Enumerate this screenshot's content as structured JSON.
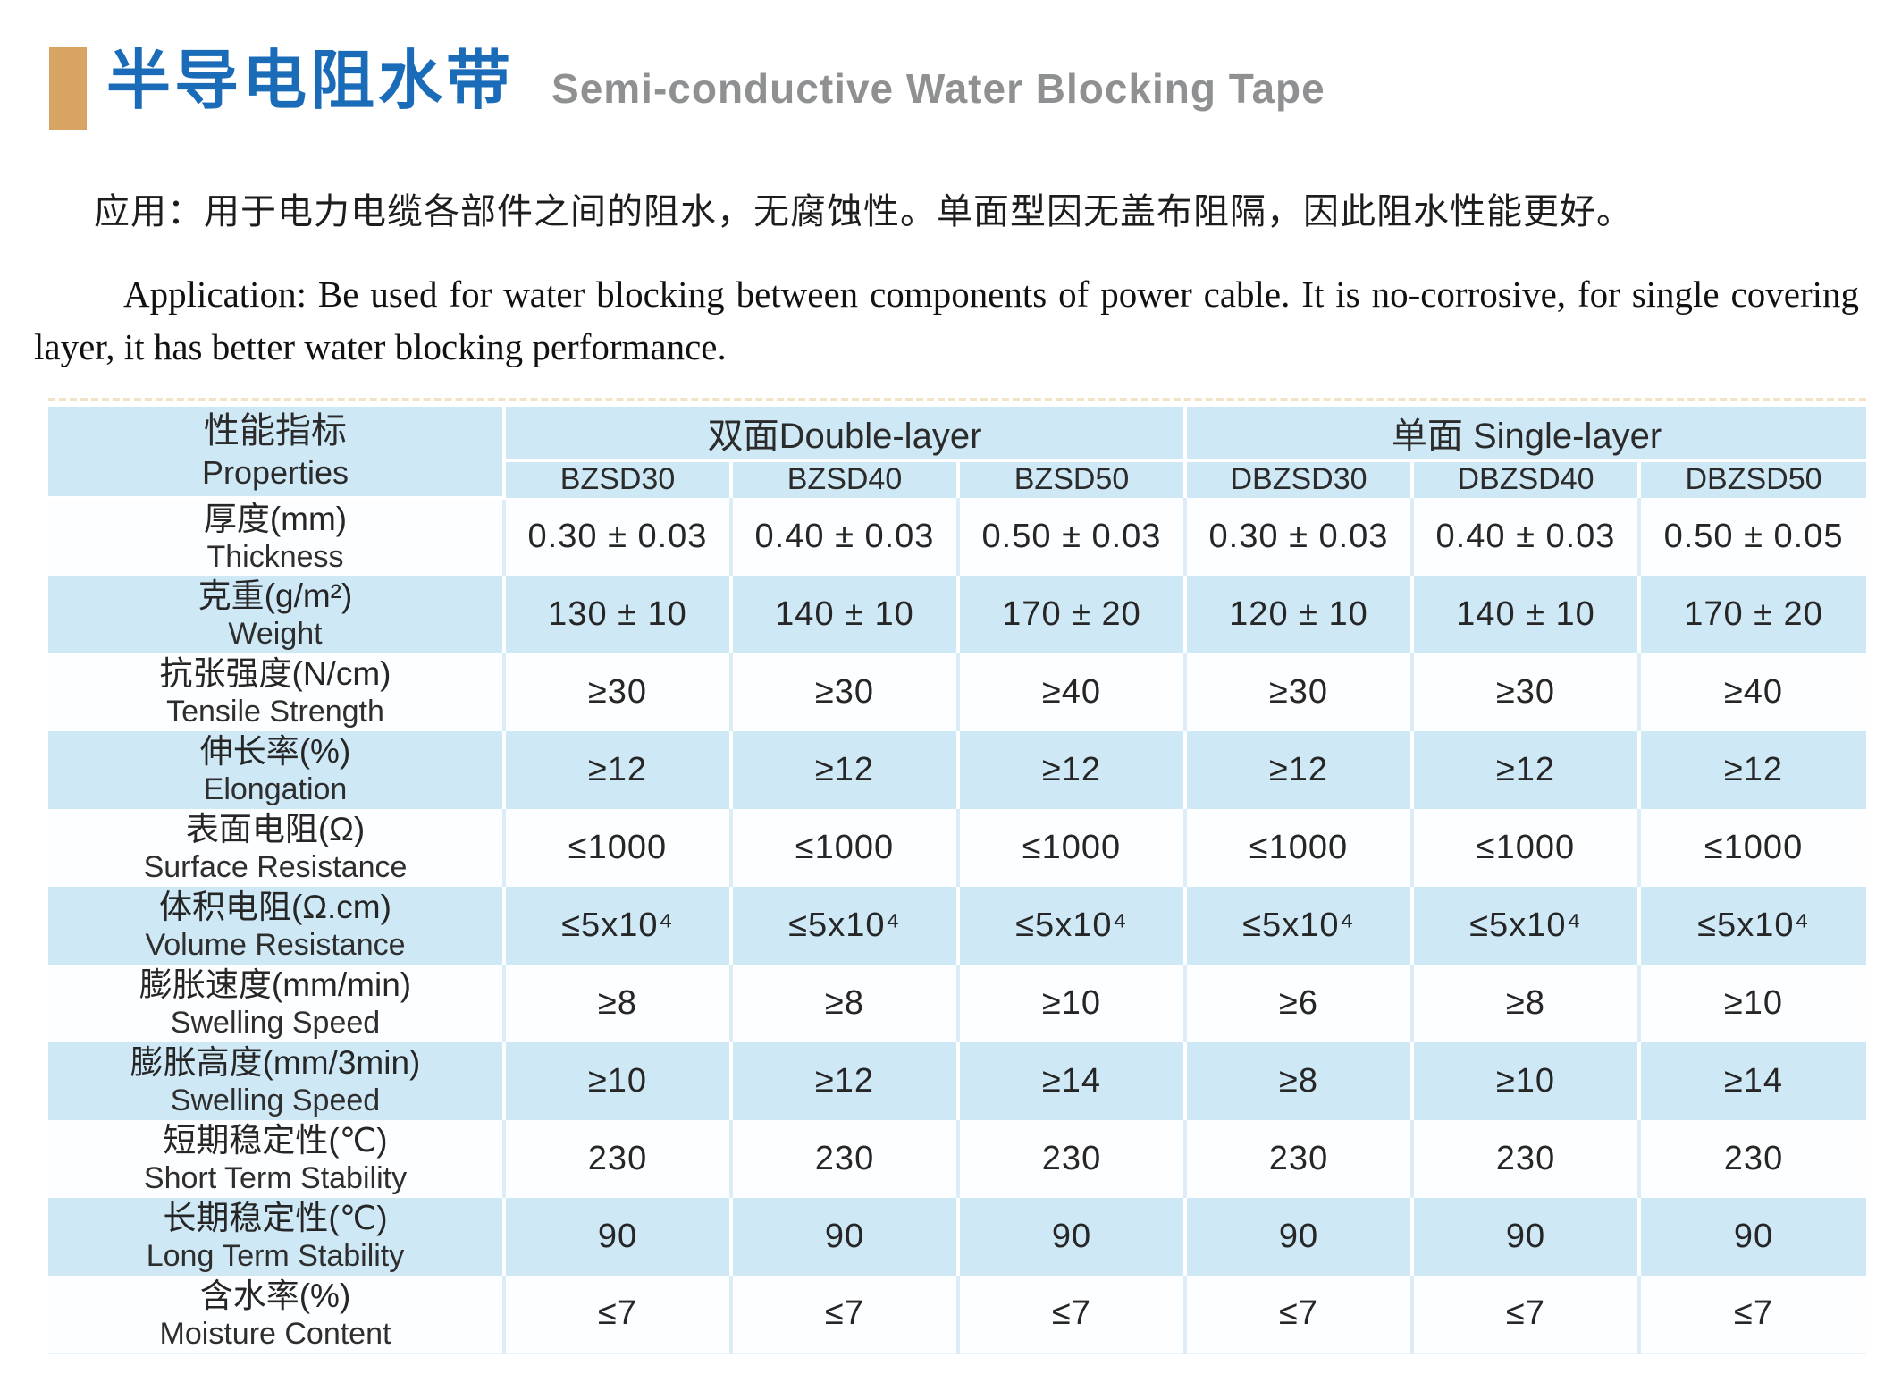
{
  "header": {
    "title_cn": "半导电阻水带",
    "title_en": "Semi-conductive Water Blocking Tape"
  },
  "application": {
    "text_cn": "应用：用于电力电缆各部件之间的阻水，无腐蚀性。单面型因无盖布阻隔，因此阻水性能更好。",
    "text_en": "Application: Be used for water blocking between components of power cable. It is no-corrosive, for single covering layer, it has better water blocking performance."
  },
  "colors": {
    "title_blue": "#1b6cb8",
    "marker_tan": "#d7a464",
    "subtitle_gray": "#8e9092",
    "table_row_blue": "#cee8f6"
  },
  "table": {
    "properties_header_cn": "性能指标",
    "properties_header_en": "Properties",
    "groups": [
      {
        "label": "双面Double-layer",
        "models": [
          "BZSD30",
          "BZSD40",
          "BZSD50"
        ]
      },
      {
        "label": "单面 Single-layer",
        "models": [
          "DBZSD30",
          "DBZSD40",
          "DBZSD50"
        ]
      }
    ],
    "rows": [
      {
        "property_cn": "厚度(mm)",
        "property_en": "Thickness",
        "values": [
          "0.30 ± 0.03",
          "0.40 ± 0.03",
          "0.50 ± 0.03",
          "0.30 ± 0.03",
          "0.40 ± 0.03",
          "0.50 ± 0.05"
        ]
      },
      {
        "property_cn": "克重(g/m²)",
        "property_en": "Weight",
        "values": [
          "130 ± 10",
          "140 ± 10",
          "170 ± 20",
          "120 ± 10",
          "140 ± 10",
          "170 ± 20"
        ]
      },
      {
        "property_cn": "抗张强度(N/cm)",
        "property_en": "Tensile Strength",
        "values": [
          "≥30",
          "≥30",
          "≥40",
          "≥30",
          "≥30",
          "≥40"
        ]
      },
      {
        "property_cn": "伸长率(%)",
        "property_en": "Elongation",
        "values": [
          "≥12",
          "≥12",
          "≥12",
          "≥12",
          "≥12",
          "≥12"
        ]
      },
      {
        "property_cn": "表面电阻(Ω)",
        "property_en": "Surface Resistance",
        "values": [
          "≤1000",
          "≤1000",
          "≤1000",
          "≤1000",
          "≤1000",
          "≤1000"
        ]
      },
      {
        "property_cn": "体积电阻(Ω.cm)",
        "property_en": "Volume Resistance",
        "values": [
          "≤5x10⁴",
          "≤5x10⁴",
          "≤5x10⁴",
          "≤5x10⁴",
          "≤5x10⁴",
          "≤5x10⁴"
        ]
      },
      {
        "property_cn": "膨胀速度(mm/min)",
        "property_en": "Swelling Speed",
        "values": [
          "≥8",
          "≥8",
          "≥10",
          "≥6",
          "≥8",
          "≥10"
        ]
      },
      {
        "property_cn": "膨胀高度(mm/3min)",
        "property_en": "Swelling Speed",
        "values": [
          "≥10",
          "≥12",
          "≥14",
          "≥8",
          "≥10",
          "≥14"
        ]
      },
      {
        "property_cn": "短期稳定性(℃)",
        "property_en": "Short Term Stability",
        "values": [
          "230",
          "230",
          "230",
          "230",
          "230",
          "230"
        ]
      },
      {
        "property_cn": "长期稳定性(℃)",
        "property_en": "Long Term Stability",
        "values": [
          "90",
          "90",
          "90",
          "90",
          "90",
          "90"
        ]
      },
      {
        "property_cn": "含水率(%)",
        "property_en": "Moisture Content",
        "values": [
          "≤7",
          "≤7",
          "≤7",
          "≤7",
          "≤7",
          "≤7"
        ]
      }
    ]
  }
}
